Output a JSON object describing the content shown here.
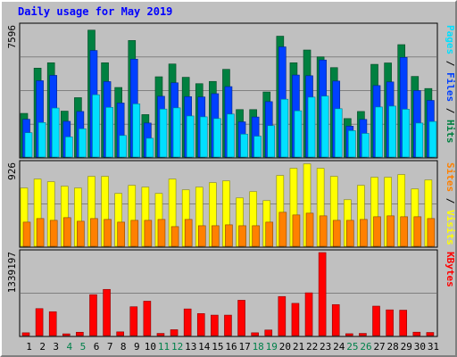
{
  "chart_data": {
    "type": "bar",
    "title": "Daily usage for May 2019",
    "categories": [
      "1",
      "2",
      "3",
      "4",
      "5",
      "6",
      "7",
      "8",
      "9",
      "10",
      "11",
      "12",
      "13",
      "14",
      "15",
      "16",
      "17",
      "18",
      "19",
      "20",
      "21",
      "22",
      "23",
      "24",
      "25",
      "26",
      "27",
      "28",
      "29",
      "30",
      "31"
    ],
    "weekend_days": [
      "4",
      "5",
      "11",
      "12",
      "18",
      "19",
      "25",
      "26"
    ],
    "panels": [
      {
        "id": "hits-files-pages",
        "max_label": "7596",
        "ylim": [
          0,
          7596
        ],
        "legend": [
          "Pages",
          "Files",
          "Hits"
        ],
        "legend_separator": "/",
        "series": [
          {
            "name": "Hits",
            "color": "#008040",
            "values": [
              2530,
              5150,
              5460,
              2660,
              3440,
              7350,
              5460,
              4030,
              6750,
              2460,
              4650,
              5390,
              4620,
              4250,
              4380,
              5080,
              2750,
              2750,
              3770,
              7000,
              5460,
              6200,
              5800,
              5180,
              2230,
              2640,
              5370,
              5450,
              6510,
              4670,
              3970
            ]
          },
          {
            "name": "Files",
            "color": "#0040ff",
            "values": [
              2190,
              4420,
              4730,
              2070,
              2640,
              6170,
              4370,
              3130,
              5670,
              1970,
              3520,
              4300,
              3500,
              3480,
              3670,
              4080,
              2040,
              2320,
              3210,
              6380,
              4750,
              4710,
              5620,
              4400,
              1790,
              2180,
              4140,
              4350,
              5770,
              3850,
              3280
            ]
          },
          {
            "name": "Pages",
            "color": "#00e0ff",
            "values": [
              1410,
              2000,
              2840,
              1170,
              1640,
              3610,
              2880,
              1250,
              3080,
              1090,
              2780,
              2850,
              2380,
              2330,
              2230,
              2490,
              1330,
              1210,
              1820,
              3350,
              2680,
              3470,
              3530,
              2800,
              1530,
              1370,
              2900,
              2950,
              2770,
              1970,
              2060
            ]
          }
        ]
      },
      {
        "id": "visits-sites",
        "max_label": "926",
        "ylim": [
          0,
          926
        ],
        "legend": [
          "Sites",
          "Visits"
        ],
        "legend_separator": "/",
        "series": [
          {
            "name": "Visits",
            "color": "#ffff00",
            "values": [
              650,
              750,
              720,
              670,
              650,
              780,
              780,
              590,
              680,
              660,
              590,
              750,
              630,
              660,
              710,
              730,
              540,
              610,
              510,
              790,
              870,
              920,
              870,
              780,
              520,
              680,
              770,
              770,
              800,
              640,
              740
            ]
          },
          {
            "name": "Sites",
            "color": "#ff8000",
            "values": [
              270,
              310,
              290,
              320,
              280,
              310,
              300,
              270,
              290,
              290,
              300,
              220,
              300,
              230,
              230,
              240,
              230,
              230,
              270,
              380,
              350,
              370,
              340,
              290,
              290,
              300,
              330,
              340,
              330,
              330,
              310
            ]
          }
        ]
      },
      {
        "id": "kbytes",
        "max_label": "1339197",
        "ylim": [
          0,
          1339197
        ],
        "legend": [
          "KBytes"
        ],
        "legend_separator": "",
        "series": [
          {
            "name": "KBytes",
            "color": "#ff0000",
            "values": [
              45000,
              435000,
              385000,
              28000,
              54000,
              660000,
              745000,
              60000,
              465000,
              555000,
              35000,
              95000,
              430000,
              355000,
              330000,
              330000,
              570000,
              45000,
              90000,
              630000,
              520000,
              690000,
              1339197,
              500000,
              30000,
              35000,
              475000,
              415000,
              410000,
              55000,
              50000
            ]
          }
        ]
      }
    ],
    "colors": {
      "background": "#c0c0c0",
      "plot_border": "#000000",
      "gridline": "#808080",
      "title": "#0000ff",
      "weekday_label": "#000000",
      "weekend_label": "#00804a"
    }
  }
}
